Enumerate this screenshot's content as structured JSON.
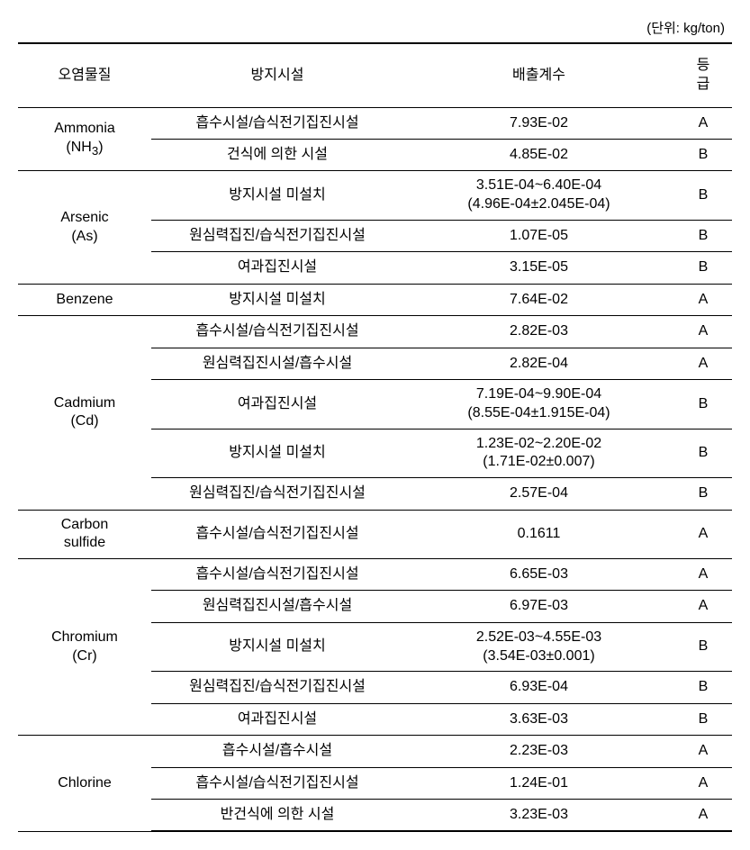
{
  "unit_label": "(단위: kg/ton)",
  "columns": {
    "c1": "오염물질",
    "c2": "방지시설",
    "c3": "배출계수",
    "c4_line1": "등",
    "c4_line2": "급"
  },
  "table": {
    "ammonia_label_line1": "Ammonia",
    "ammonia_label_line2": "(NH",
    "ammonia_label_line3": ")",
    "ammonia_sub": "3",
    "ammonia_r1_fac": "흡수시설/습식전기집진시설",
    "ammonia_r1_val": "7.93E-02",
    "ammonia_r1_grade": "A",
    "ammonia_r2_fac": "건식에 의한 시설",
    "ammonia_r2_val": "4.85E-02",
    "ammonia_r2_grade": "B",
    "arsenic_label_line1": "Arsenic",
    "arsenic_label_line2": "(As)",
    "arsenic_r1_fac": "방지시설 미설치",
    "arsenic_r1_val_line1": "3.51E-04~6.40E-04",
    "arsenic_r1_val_line2": "(4.96E-04±2.045E-04)",
    "arsenic_r1_grade": "B",
    "arsenic_r2_fac": "원심력집진/습식전기집진시설",
    "arsenic_r2_val": "1.07E-05",
    "arsenic_r2_grade": "B",
    "arsenic_r3_fac": "여과집진시설",
    "arsenic_r3_val": "3.15E-05",
    "arsenic_r3_grade": "B",
    "benzene_label": "Benzene",
    "benzene_r1_fac": "방지시설 미설치",
    "benzene_r1_val": "7.64E-02",
    "benzene_r1_grade": "A",
    "cadmium_label_line1": "Cadmium",
    "cadmium_label_line2": "(Cd)",
    "cadmium_r1_fac": "흡수시설/습식전기집진시설",
    "cadmium_r1_val": "2.82E-03",
    "cadmium_r1_grade": "A",
    "cadmium_r2_fac": "원심력집진시설/흡수시설",
    "cadmium_r2_val": "2.82E-04",
    "cadmium_r2_grade": "A",
    "cadmium_r3_fac": "여과집진시설",
    "cadmium_r3_val_line1": "7.19E-04~9.90E-04",
    "cadmium_r3_val_line2": "(8.55E-04±1.915E-04)",
    "cadmium_r3_grade": "B",
    "cadmium_r4_fac": "방지시설 미설치",
    "cadmium_r4_val_line1": "1.23E-02~2.20E-02",
    "cadmium_r4_val_line2": "(1.71E-02±0.007)",
    "cadmium_r4_grade": "B",
    "cadmium_r5_fac": "원심력집진/습식전기집진시설",
    "cadmium_r5_val": "2.57E-04",
    "cadmium_r5_grade": "B",
    "carbons_label_line1": "Carbon",
    "carbons_label_line2": "sulfide",
    "carbons_r1_fac": "흡수시설/습식전기집진시설",
    "carbons_r1_val": "0.1611",
    "carbons_r1_grade": "A",
    "chromium_label_line1": "Chromium",
    "chromium_label_line2": "(Cr)",
    "chromium_r1_fac": "흡수시설/습식전기집진시설",
    "chromium_r1_val": "6.65E-03",
    "chromium_r1_grade": "A",
    "chromium_r2_fac": "원심력집진시설/흡수시설",
    "chromium_r2_val": "6.97E-03",
    "chromium_r2_grade": "A",
    "chromium_r3_fac": "방지시설 미설치",
    "chromium_r3_val_line1": "2.52E-03~4.55E-03",
    "chromium_r3_val_line2": "(3.54E-03±0.001)",
    "chromium_r3_grade": "B",
    "chromium_r4_fac": "원심력집진/습식전기집진시설",
    "chromium_r4_val": "6.93E-04",
    "chromium_r4_grade": "B",
    "chromium_r5_fac": "여과집진시설",
    "chromium_r5_val": "3.63E-03",
    "chromium_r5_grade": "B",
    "chlorine_label": "Chlorine",
    "chlorine_r1_fac": "흡수시설/흡수시설",
    "chlorine_r1_val": "2.23E-03",
    "chlorine_r1_grade": "A",
    "chlorine_r2_fac": "흡수시설/습식전기집진시설",
    "chlorine_r2_val": "1.24E-01",
    "chlorine_r2_grade": "A",
    "chlorine_r3_fac": "반건식에 의한 시설",
    "chlorine_r3_val": "3.23E-03",
    "chlorine_r3_grade": "A"
  }
}
